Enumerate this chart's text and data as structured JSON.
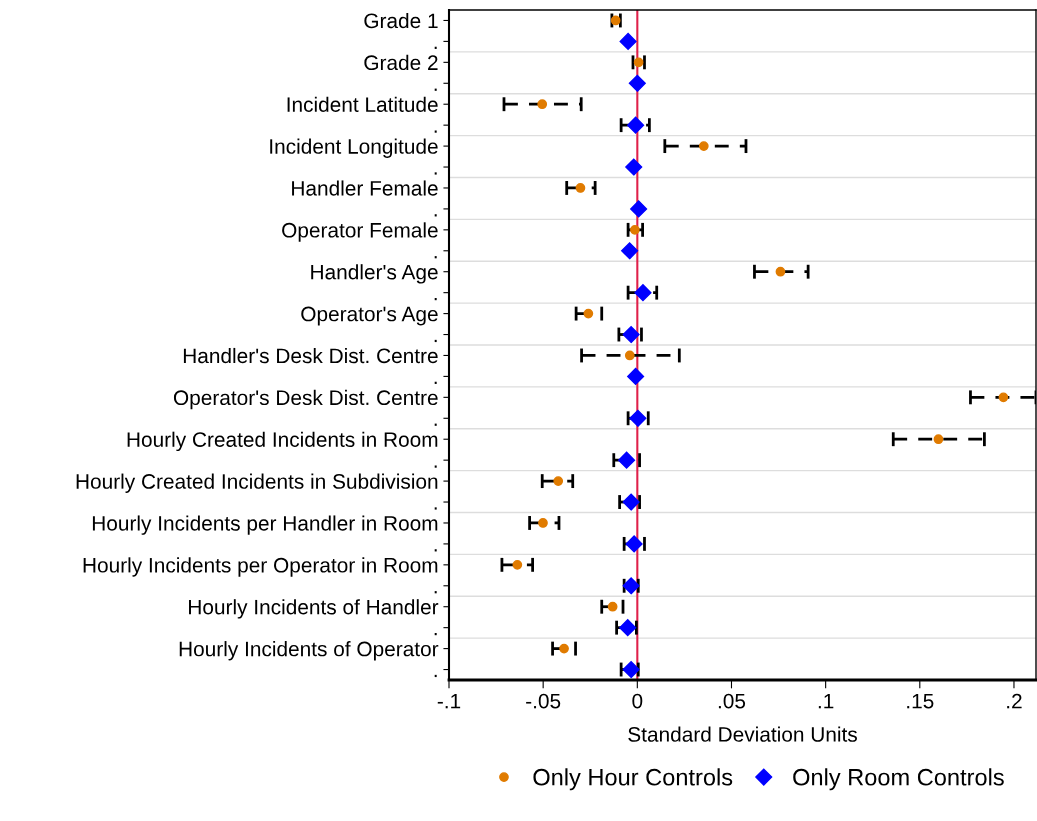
{
  "chart_data": {
    "type": "scatter",
    "orientation": "horizontal",
    "xlabel": "Standard Deviation Units",
    "categories": [
      "Grade 1",
      ".",
      "Grade 2",
      ".",
      "Incident Latitude",
      ".",
      "Incident Longitude",
      ".",
      "Handler Female",
      ".",
      "Operator Female",
      ".",
      "Handler's Age",
      ".",
      "Operator's Age",
      ".",
      "Handler's Desk Dist. Centre",
      ".",
      "Operator's Desk Dist. Centre",
      ".",
      "Hourly Created Incidents in Room",
      ".",
      "Hourly Created Incidents in Subdivision",
      ".",
      "Hourly Incidents per Handler in Room",
      ".",
      "Hourly Incidents per Operator in Room",
      ".",
      "Hourly Incidents of Handler",
      ".",
      "Hourly Incidents of Operator",
      "."
    ],
    "series": [
      {
        "name": "Only Hour Controls",
        "color": "#e07b00",
        "marker": "circle",
        "values": [
          -0.0115,
          null,
          0.0007,
          null,
          -0.0505,
          null,
          0.0353,
          null,
          -0.0302,
          null,
          -0.0013,
          null,
          0.076,
          null,
          -0.026,
          null,
          -0.004,
          null,
          0.1944,
          null,
          0.1599,
          null,
          -0.042,
          null,
          -0.0501,
          null,
          -0.0637,
          null,
          -0.0131,
          null,
          -0.0389,
          null
        ],
        "errors": [
          [
            -0.0135,
            -0.009
          ],
          null,
          [
            -0.0023,
            0.0038
          ],
          null,
          [
            -0.0708,
            -0.0298
          ],
          null,
          [
            0.0146,
            0.0577
          ],
          null,
          [
            -0.0375,
            -0.0224
          ],
          null,
          [
            -0.0049,
            0.0028
          ],
          null,
          [
            0.0622,
            0.0907
          ],
          null,
          [
            -0.0325,
            -0.0189
          ],
          null,
          [
            -0.0296,
            0.0223
          ],
          null,
          [
            0.1769,
            0.2117
          ],
          null,
          [
            0.1359,
            0.1843
          ],
          null,
          [
            -0.0505,
            -0.0343
          ],
          null,
          [
            -0.0572,
            -0.0416
          ],
          null,
          [
            -0.0719,
            -0.0556
          ],
          null,
          [
            -0.0189,
            -0.0076
          ],
          null,
          [
            -0.045,
            -0.0328
          ],
          null
        ]
      },
      {
        "name": "Only Room Controls",
        "color": "#0000ff",
        "marker": "diamond",
        "values": [
          null,
          -0.0049,
          null,
          0,
          null,
          -0.0009,
          null,
          -0.0019,
          null,
          0.0007,
          null,
          -0.0041,
          null,
          0.003,
          null,
          -0.0033,
          null,
          -0.0009,
          null,
          0.0003,
          null,
          -0.0057,
          null,
          -0.0033,
          null,
          -0.0017,
          null,
          -0.0033,
          null,
          -0.0051,
          null,
          -0.0033
        ],
        "errors": [
          null,
          null,
          null,
          null,
          null,
          [
            -0.0086,
            0.0064
          ],
          null,
          null,
          null,
          null,
          null,
          null,
          null,
          [
            -0.0049,
            0.0103
          ],
          null,
          [
            -0.0098,
            0.0022
          ],
          null,
          null,
          null,
          [
            -0.0049,
            0.0058
          ],
          null,
          [
            -0.0125,
            0.0012
          ],
          null,
          [
            -0.0094,
            0.0012
          ],
          null,
          [
            -0.007,
            0.0038
          ],
          null,
          [
            -0.007,
            0.0005
          ],
          null,
          [
            -0.011,
            -0.0005
          ],
          null,
          [
            -0.0086,
            0.0005
          ]
        ]
      }
    ],
    "xlim": [
      -0.1,
      0.2117
    ],
    "xticks": [
      {
        "value": -0.1,
        "label": "-.1"
      },
      {
        "value": -0.05,
        "label": "-.05"
      },
      {
        "value": 0,
        "label": "0"
      },
      {
        "value": 0.05,
        "label": ".05"
      },
      {
        "value": 0.1,
        "label": ".1"
      },
      {
        "value": 0.15,
        "label": ".15"
      },
      {
        "value": 0.2,
        "label": ".2"
      }
    ],
    "ref_lines": [
      {
        "axis": "x",
        "value": 0,
        "color": "#e0204a"
      }
    ],
    "line_style": "dashed",
    "grid": true,
    "legend": "bottom"
  }
}
